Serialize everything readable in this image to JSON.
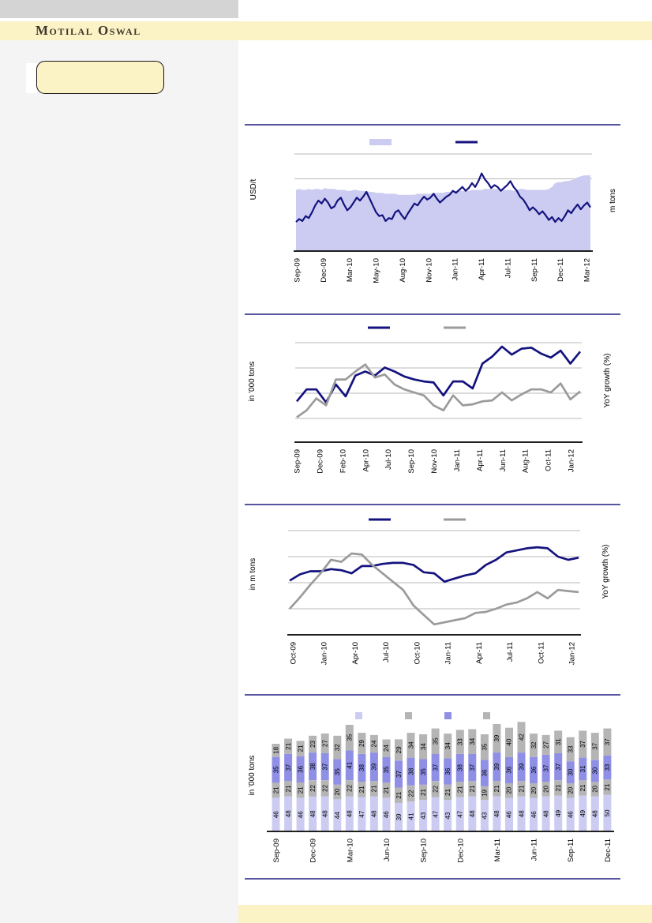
{
  "page": {
    "brand_name": "Motilal Oswal",
    "colors": {
      "header_band": "#fbf3c5",
      "top_bar": "#d4d4d4",
      "left_column": "#f4f4f4",
      "separator_navy": "#201d80",
      "navy_series": "#14137f",
      "gray_series": "#9b9b9b",
      "gridline": "#b8b8b8",
      "axis": "#000000",
      "area_fill": "#ccccf2",
      "bar_light": "#ccccf2",
      "bar_blue": "#8f8fe6",
      "bar_gray": "#b5b5b5"
    }
  },
  "sidebar": {
    "note_box_text": ""
  },
  "chart_data": [
    {
      "type": "area",
      "title": "",
      "left_axis_label": "USD/t",
      "right_axis_label": "m tons",
      "x_tick_labels": [
        "Sep-09",
        "Dec-09",
        "Mar-10",
        "May-10",
        "Aug-10",
        "Nov-10",
        "Jan-11",
        "Apr-11",
        "Jul-11",
        "Sep-11",
        "Dec-11",
        "Mar-12"
      ],
      "axis_values_visible": false,
      "note": "Numeric axis scales are not printed in the source; series shapes are stored as fractions of plot height.",
      "legend": [
        {
          "shape": "rect",
          "color": "#ccccf2",
          "label": ""
        },
        {
          "shape": "line",
          "color": "#14137f",
          "label": ""
        }
      ],
      "series": [
        {
          "name": "volume-area",
          "render": "area",
          "color": "#ccccf2",
          "height_frac": [
            0.63,
            0.64,
            0.63,
            0.63,
            0.64,
            0.63,
            0.64,
            0.64,
            0.63,
            0.65,
            0.64,
            0.64,
            0.64,
            0.63,
            0.63,
            0.63,
            0.62,
            0.62,
            0.63,
            0.63,
            0.62,
            0.62,
            0.62,
            0.61,
            0.61,
            0.6,
            0.6,
            0.6,
            0.59,
            0.59,
            0.59,
            0.59,
            0.58,
            0.58,
            0.58,
            0.58,
            0.58,
            0.58,
            0.59,
            0.59,
            0.59,
            0.59,
            0.59,
            0.6,
            0.6,
            0.6,
            0.6,
            0.61,
            0.61,
            0.61,
            0.62,
            0.62,
            0.62,
            0.62,
            0.62,
            0.63,
            0.63,
            0.63,
            0.63,
            0.64,
            0.64,
            0.64,
            0.64,
            0.64,
            0.63,
            0.63,
            0.63,
            0.63,
            0.62,
            0.63,
            0.64,
            0.64,
            0.63,
            0.63,
            0.63,
            0.63,
            0.63,
            0.63,
            0.63,
            0.64,
            0.66,
            0.7,
            0.71,
            0.71,
            0.72,
            0.72,
            0.73,
            0.74,
            0.76,
            0.77,
            0.78,
            0.78,
            0.78
          ]
        },
        {
          "name": "price-line",
          "render": "line",
          "color": "#14137f",
          "width": 2.2,
          "height_frac": [
            0.3,
            0.33,
            0.31,
            0.36,
            0.34,
            0.4,
            0.47,
            0.52,
            0.49,
            0.54,
            0.5,
            0.44,
            0.46,
            0.52,
            0.55,
            0.48,
            0.42,
            0.45,
            0.5,
            0.55,
            0.52,
            0.56,
            0.61,
            0.54,
            0.47,
            0.4,
            0.36,
            0.37,
            0.31,
            0.34,
            0.33,
            0.4,
            0.42,
            0.37,
            0.33,
            0.39,
            0.44,
            0.49,
            0.47,
            0.52,
            0.56,
            0.53,
            0.55,
            0.59,
            0.54,
            0.5,
            0.53,
            0.56,
            0.58,
            0.62,
            0.6,
            0.63,
            0.66,
            0.62,
            0.65,
            0.7,
            0.66,
            0.72,
            0.8,
            0.74,
            0.7,
            0.65,
            0.68,
            0.66,
            0.62,
            0.65,
            0.68,
            0.72,
            0.66,
            0.62,
            0.56,
            0.53,
            0.48,
            0.42,
            0.45,
            0.42,
            0.38,
            0.41,
            0.37,
            0.32,
            0.35,
            0.3,
            0.34,
            0.31,
            0.36,
            0.42,
            0.39,
            0.44,
            0.48,
            0.43,
            0.47,
            0.5,
            0.45
          ]
        }
      ]
    },
    {
      "type": "line",
      "title": "",
      "left_axis_label": "in '000 tons",
      "right_axis_label": "YoY growth (%)",
      "x_categories": [
        "Sep-09",
        "Oct-09",
        "Nov-09",
        "Dec-09",
        "Jan-10",
        "Feb-10",
        "Mar-10",
        "Apr-10",
        "May-10",
        "Jun-10",
        "Jul-10",
        "Aug-10",
        "Sep-10",
        "Oct-10",
        "Nov-10",
        "Dec-10",
        "Jan-11",
        "Feb-11",
        "Mar-11",
        "Apr-11",
        "May-11",
        "Jun-11",
        "Jul-11",
        "Aug-11",
        "Sep-11",
        "Oct-11",
        "Nov-11",
        "Dec-11",
        "Jan-12",
        "Feb-12"
      ],
      "x_tick_labels": [
        "Sep-09",
        "Dec-09",
        "Feb-10",
        "Apr-10",
        "Jul-10",
        "Sep-10",
        "Nov-10",
        "Jan-11",
        "Apr-11",
        "Jun-11",
        "Aug-11",
        "Oct-11",
        "Jan-12"
      ],
      "axis_values_visible": false,
      "note": "Numeric axis scales are not printed in the source; series shapes are stored as fractions of plot height.",
      "legend": [
        {
          "shape": "line",
          "color": "#14137f",
          "label": ""
        },
        {
          "shape": "line",
          "color": "#9b9b9b",
          "label": ""
        }
      ],
      "series": [
        {
          "name": "navy-series",
          "render": "line",
          "color": "#14137f",
          "width": 2.7,
          "height_frac": [
            0.41,
            0.53,
            0.53,
            0.4,
            0.58,
            0.46,
            0.67,
            0.71,
            0.67,
            0.75,
            0.71,
            0.66,
            0.63,
            0.61,
            0.6,
            0.47,
            0.61,
            0.61,
            0.54,
            0.79,
            0.86,
            0.96,
            0.88,
            0.94,
            0.95,
            0.89,
            0.85,
            0.92,
            0.79,
            0.91
          ]
        },
        {
          "name": "gray-series",
          "render": "line",
          "color": "#9b9b9b",
          "width": 2.7,
          "height_frac": [
            0.25,
            0.32,
            0.44,
            0.37,
            0.63,
            0.63,
            0.71,
            0.78,
            0.65,
            0.68,
            0.58,
            0.53,
            0.5,
            0.47,
            0.37,
            0.32,
            0.47,
            0.37,
            0.38,
            0.41,
            0.42,
            0.5,
            0.42,
            0.48,
            0.53,
            0.53,
            0.5,
            0.59,
            0.43,
            0.51
          ]
        }
      ]
    },
    {
      "type": "line",
      "title": "",
      "left_axis_label": "in m tons",
      "right_axis_label": "YoY growth (%)",
      "x_categories": [
        "Oct-09",
        "Nov-09",
        "Dec-09",
        "Jan-10",
        "Feb-10",
        "Mar-10",
        "Apr-10",
        "May-10",
        "Jun-10",
        "Jul-10",
        "Aug-10",
        "Sep-10",
        "Oct-10",
        "Nov-10",
        "Dec-10",
        "Jan-11",
        "Feb-11",
        "Mar-11",
        "Apr-11",
        "May-11",
        "Jun-11",
        "Jul-11",
        "Aug-11",
        "Sep-11",
        "Oct-11",
        "Nov-11",
        "Dec-11",
        "Jan-12",
        "Feb-12"
      ],
      "x_tick_labels": [
        "Oct-09",
        "Jan-10",
        "Apr-10",
        "Jul-10",
        "Oct-10",
        "Jan-11",
        "Apr-11",
        "Jul-11",
        "Oct-11",
        "Jan-12"
      ],
      "axis_values_visible": false,
      "note": "Numeric axis scales are not printed in the source; series shapes are stored as fractions of plot height.",
      "legend": [
        {
          "shape": "line",
          "color": "#14137f",
          "label": ""
        },
        {
          "shape": "line",
          "color": "#9b9b9b",
          "label": ""
        }
      ],
      "series": [
        {
          "name": "navy-series",
          "render": "line",
          "color": "#14137f",
          "width": 2.7,
          "height_frac": [
            0.52,
            0.58,
            0.61,
            0.61,
            0.63,
            0.62,
            0.59,
            0.66,
            0.66,
            0.68,
            0.69,
            0.69,
            0.67,
            0.6,
            0.59,
            0.51,
            0.54,
            0.57,
            0.59,
            0.67,
            0.72,
            0.79,
            0.81,
            0.83,
            0.84,
            0.83,
            0.75,
            0.72,
            0.74
          ]
        },
        {
          "name": "gray-series",
          "render": "line",
          "color": "#9b9b9b",
          "width": 2.7,
          "height_frac": [
            0.25,
            0.36,
            0.48,
            0.59,
            0.72,
            0.7,
            0.78,
            0.77,
            0.67,
            0.59,
            0.51,
            0.43,
            0.28,
            0.19,
            0.1,
            0.12,
            0.14,
            0.16,
            0.21,
            0.22,
            0.25,
            0.29,
            0.31,
            0.35,
            0.41,
            0.35,
            0.43,
            0.42,
            0.41
          ]
        }
      ]
    },
    {
      "type": "bar",
      "stacked": true,
      "title": "",
      "left_axis_label": "in '000 tons",
      "categories": [
        "Sep-09",
        "Oct-09",
        "Nov-09",
        "Dec-09",
        "Jan-10",
        "Feb-10",
        "Mar-10",
        "Apr-10",
        "May-10",
        "Jun-10",
        "Jul-10",
        "Aug-10",
        "Sep-10",
        "Oct-10",
        "Nov-10",
        "Dec-10",
        "Jan-11",
        "Feb-11",
        "Mar-11",
        "Apr-11",
        "May-11",
        "Jun-11",
        "Jul-11",
        "Aug-11",
        "Sep-11",
        "Oct-11",
        "Nov-11",
        "Dec-11"
      ],
      "x_tick_labels": [
        "Sep-09",
        "Dec-09",
        "Mar-10",
        "Jun-10",
        "Sep-10",
        "Dec-10",
        "Mar-11",
        "Jun-11",
        "Sep-11",
        "Dec-11"
      ],
      "legend": [
        {
          "shape": "square",
          "color": "#ccccf2",
          "label": ""
        },
        {
          "shape": "square",
          "color": "#b5b5b5",
          "label": ""
        },
        {
          "shape": "square",
          "color": "#8f8fe6",
          "label": ""
        },
        {
          "shape": "square",
          "color": "#b5b5b5",
          "label": ""
        }
      ],
      "series": [
        {
          "name": "segment-1-bottom",
          "color": "#ccccf2",
          "values": [
            46,
            48,
            46,
            48,
            48,
            44,
            48,
            47,
            48,
            46,
            39,
            41,
            43,
            47,
            43,
            47,
            48,
            43,
            48,
            46,
            48,
            46,
            48,
            49,
            46,
            49,
            48,
            50
          ]
        },
        {
          "name": "segment-2",
          "color": "#b5b5b5",
          "values": [
            21,
            21,
            21,
            22,
            22,
            20,
            22,
            21,
            21,
            21,
            21,
            22,
            21,
            22,
            21,
            21,
            21,
            19,
            21,
            20,
            21,
            20,
            20,
            21,
            20,
            21,
            20,
            21
          ]
        },
        {
          "name": "segment-3",
          "color": "#8f8fe6",
          "values": [
            35,
            37,
            36,
            38,
            37,
            35,
            41,
            38,
            39,
            35,
            37,
            38,
            35,
            37,
            36,
            38,
            37,
            36,
            39,
            36,
            39,
            36,
            37,
            37,
            30,
            31,
            30,
            33
          ]
        },
        {
          "name": "segment-4-top",
          "color": "#b5b5b5",
          "values": [
            18,
            21,
            21,
            23,
            27,
            32,
            35,
            29,
            24,
            24,
            29,
            34,
            34,
            35,
            34,
            33,
            34,
            35,
            39,
            40,
            42,
            32,
            27,
            31,
            33,
            37,
            37,
            37
          ]
        }
      ]
    }
  ]
}
